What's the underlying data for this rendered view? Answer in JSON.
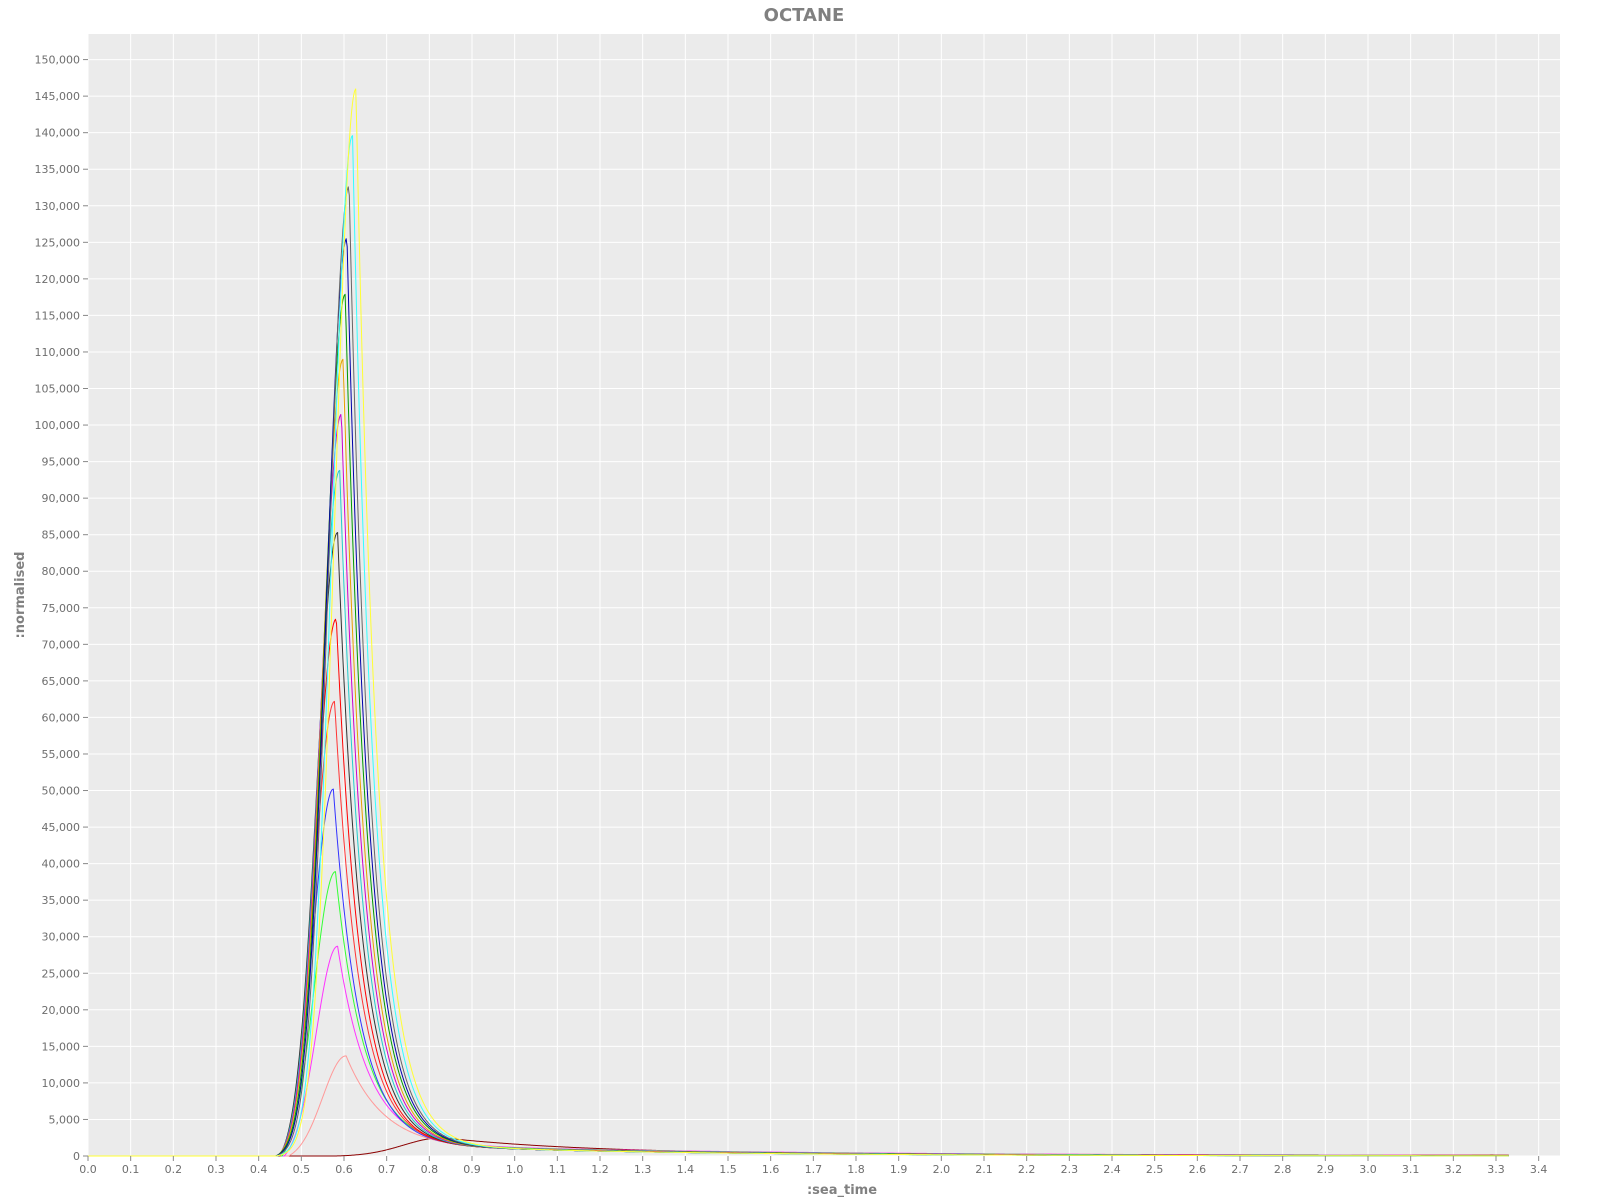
{
  "chart_data": {
    "type": "line",
    "title": "OCTANE",
    "xlabel": ":sea_time",
    "ylabel": ":normalised",
    "xlim": [
      0.0,
      3.45
    ],
    "ylim": [
      0,
      153500
    ],
    "x_ticks": [
      0.0,
      0.1,
      0.2,
      0.3,
      0.4,
      0.5,
      0.6,
      0.7,
      0.8,
      0.9,
      1.0,
      1.1,
      1.2,
      1.3,
      1.4,
      1.5,
      1.6,
      1.7,
      1.8,
      1.9,
      2.0,
      2.1,
      2.2,
      2.3,
      2.4,
      2.5,
      2.6,
      2.7,
      2.8,
      2.9,
      3.0,
      3.1,
      3.2,
      3.3,
      3.4
    ],
    "x_tick_labels": [
      "0.0",
      "0.1",
      "0.2",
      "0.3",
      "0.4",
      "0.5",
      "0.6",
      "0.7",
      "0.8",
      "0.9",
      "1.0",
      "1.1",
      "1.2",
      "1.3",
      "1.4",
      "1.5",
      "1.6",
      "1.7",
      "1.8",
      "1.9",
      "2.0",
      "2.1",
      "2.2",
      "2.3",
      "2.4",
      "2.5",
      "2.6",
      "2.7",
      "2.8",
      "2.9",
      "3.0",
      "3.1",
      "3.2",
      "3.3",
      "3.4"
    ],
    "y_ticks": [
      0,
      5000,
      10000,
      15000,
      20000,
      25000,
      30000,
      35000,
      40000,
      45000,
      50000,
      55000,
      60000,
      65000,
      70000,
      75000,
      80000,
      85000,
      90000,
      95000,
      100000,
      105000,
      110000,
      115000,
      120000,
      125000,
      130000,
      135000,
      140000,
      145000,
      150000
    ],
    "y_tick_labels": [
      "0",
      "5,000",
      "10,000",
      "15,000",
      "20,000",
      "25,000",
      "30,000",
      "35,000",
      "40,000",
      "45,000",
      "50,000",
      "55,000",
      "60,000",
      "65,000",
      "70,000",
      "75,000",
      "80,000",
      "85,000",
      "90,000",
      "95,000",
      "100,000",
      "105,000",
      "110,000",
      "115,000",
      "120,000",
      "125,000",
      "130,000",
      "135,000",
      "140,000",
      "145,000",
      "150,000"
    ],
    "grid": true,
    "legend": "none",
    "x_range": [
      0.0,
      3.33
    ],
    "series": [
      {
        "color": "#8b0000",
        "peak_x": 0.83,
        "peak_y": 2500,
        "rise_width": 0.09,
        "decay_tau": 0.65,
        "onset": 0.58
      },
      {
        "color": "#ff9999",
        "peak_x": 0.605,
        "peak_y": 13700,
        "rise_width": 0.055,
        "decay_tau": 0.16,
        "onset": 0.47
      },
      {
        "color": "#ff33ff",
        "peak_x": 0.585,
        "peak_y": 28700,
        "rise_width": 0.05,
        "decay_tau": 0.13,
        "onset": 0.46
      },
      {
        "color": "#33ff33",
        "peak_x": 0.58,
        "peak_y": 38900,
        "rise_width": 0.05,
        "decay_tau": 0.12,
        "onset": 0.455
      },
      {
        "color": "#3333ff",
        "peak_x": 0.575,
        "peak_y": 50200,
        "rise_width": 0.048,
        "decay_tau": 0.11,
        "onset": 0.45
      },
      {
        "color": "#ff3333",
        "peak_x": 0.578,
        "peak_y": 62200,
        "rise_width": 0.048,
        "decay_tau": 0.105,
        "onset": 0.45
      },
      {
        "color": "#ff0000",
        "peak_x": 0.582,
        "peak_y": 73500,
        "rise_width": 0.048,
        "decay_tau": 0.1,
        "onset": 0.45
      },
      {
        "color": "#333333",
        "peak_x": 0.585,
        "peak_y": 85300,
        "rise_width": 0.048,
        "decay_tau": 0.098,
        "onset": 0.448
      },
      {
        "color": "#22cccc",
        "peak_x": 0.59,
        "peak_y": 93800,
        "rise_width": 0.048,
        "decay_tau": 0.096,
        "onset": 0.446
      },
      {
        "color": "#cc00cc",
        "peak_x": 0.594,
        "peak_y": 101500,
        "rise_width": 0.048,
        "decay_tau": 0.095,
        "onset": 0.444
      },
      {
        "color": "#e6a000",
        "peak_x": 0.598,
        "peak_y": 109000,
        "rise_width": 0.048,
        "decay_tau": 0.094,
        "onset": 0.442
      },
      {
        "color": "#009900",
        "peak_x": 0.603,
        "peak_y": 117900,
        "rise_width": 0.048,
        "decay_tau": 0.093,
        "onset": 0.44
      },
      {
        "color": "#0000aa",
        "peak_x": 0.607,
        "peak_y": 125600,
        "rise_width": 0.048,
        "decay_tau": 0.092,
        "onset": 0.44
      },
      {
        "color": "#666666",
        "peak_x": 0.612,
        "peak_y": 132700,
        "rise_width": 0.048,
        "decay_tau": 0.091,
        "onset": 0.44
      },
      {
        "color": "#33ffff",
        "peak_x": 0.62,
        "peak_y": 139600,
        "rise_width": 0.048,
        "decay_tau": 0.09,
        "onset": 0.44
      },
      {
        "color": "#ffff33",
        "peak_x": 0.628,
        "peak_y": 146000,
        "rise_width": 0.049,
        "decay_tau": 0.09,
        "onset": 0.44
      }
    ]
  }
}
